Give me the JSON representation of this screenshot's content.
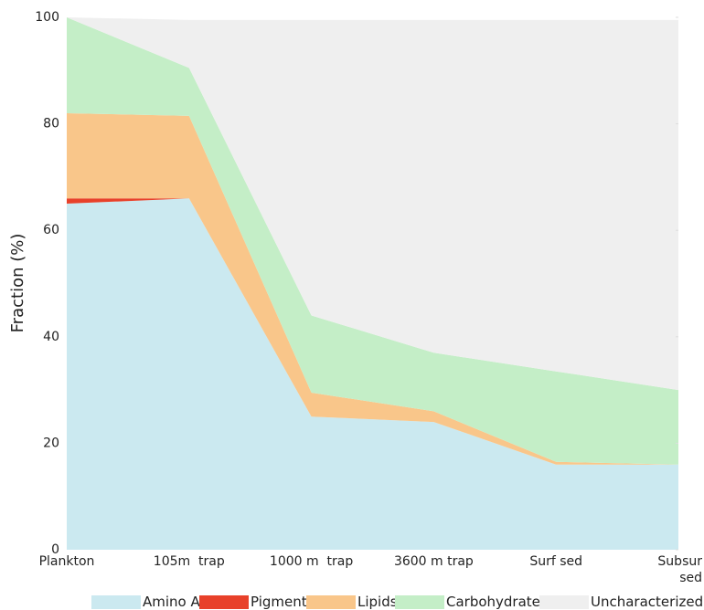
{
  "chart_data": {
    "type": "stacked_area",
    "y_label": "Fraction (%)",
    "categories": [
      "Plankton",
      "105m  trap",
      "1000 m  trap",
      "3600 m trap",
      "Surf sed",
      "Subsur sed"
    ],
    "series": [
      {
        "name": "Amino Acids",
        "color": "#cbe9f0",
        "values": [
          65,
          66,
          25,
          24,
          16,
          16
        ]
      },
      {
        "name": "Pigments",
        "color": "#e8412a",
        "values": [
          1,
          0,
          0,
          0,
          0,
          0
        ]
      },
      {
        "name": "Lipids",
        "color": "#f9c68a",
        "values": [
          16,
          15.5,
          4.5,
          2,
          0.5,
          0
        ]
      },
      {
        "name": "Carbohydrates",
        "color": "#c4eec7",
        "values": [
          18,
          9,
          14.5,
          11,
          17,
          14
        ]
      },
      {
        "name": "Uncharacterized",
        "color": "#efefef",
        "values": [
          0,
          9,
          55.5,
          62.5,
          66,
          69.5
        ]
      }
    ],
    "ylim": [
      0,
      100
    ],
    "yticks": [
      0,
      20,
      40,
      60,
      80,
      100
    ],
    "grid": false
  }
}
